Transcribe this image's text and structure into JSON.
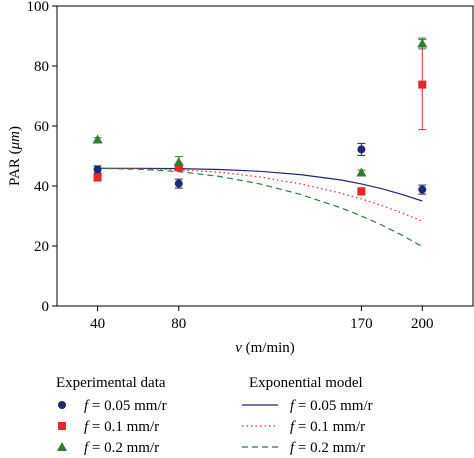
{
  "chart_data": {
    "type": "scatter",
    "ylabel_prefix": "PAR (",
    "ylabel_unit": "μm",
    "ylabel_suffix": ")",
    "xlabel_var": "v",
    "xlabel_unit": " (m/min)",
    "xlim": [
      20,
      225
    ],
    "ylim": [
      0,
      100
    ],
    "xticks": [
      40,
      80,
      170,
      200
    ],
    "yticks": [
      0,
      20,
      40,
      60,
      80,
      100
    ],
    "grid": false,
    "legend_position": "bottom",
    "experimental_title": "Experimental data",
    "model_title": "Exponential model",
    "experimental": [
      {
        "label": "= 0.05 mm/r",
        "marker": "circle",
        "color": "#1f2a6e",
        "points": [
          {
            "x": 40,
            "y": 45.5,
            "err": 1.2
          },
          {
            "x": 80,
            "y": 40.8,
            "err": 1.5
          },
          {
            "x": 170,
            "y": 52.2,
            "err": 2.0
          },
          {
            "x": 200,
            "y": 38.8,
            "err": 1.5
          }
        ]
      },
      {
        "label": "= 0.1 mm/r",
        "marker": "square",
        "color": "#e8262a",
        "points": [
          {
            "x": 40,
            "y": 42.8,
            "err": 0.8
          },
          {
            "x": 80,
            "y": 46.2,
            "err": 0.8
          },
          {
            "x": 170,
            "y": 38.2,
            "err": 1.2
          },
          {
            "x": 200,
            "y": 73.8,
            "err": 15.0
          }
        ]
      },
      {
        "label": "= 0.2 mm/r",
        "marker": "triangle",
        "color": "#2e7d32",
        "points": [
          {
            "x": 40,
            "y": 55.5,
            "err": 0.6
          },
          {
            "x": 80,
            "y": 48.0,
            "err": 1.8
          },
          {
            "x": 170,
            "y": 44.5,
            "err": 0.8
          },
          {
            "x": 200,
            "y": 87.5,
            "err": 1.8
          }
        ]
      }
    ],
    "model": [
      {
        "label": "= 0.05 mm/r",
        "style": "solid",
        "color": "#1f2a6e",
        "x": [
          40,
          60,
          80,
          100,
          120,
          140,
          160,
          170,
          180,
          190,
          200
        ],
        "y": [
          45.9,
          45.9,
          45.8,
          45.5,
          44.9,
          43.8,
          42.0,
          40.7,
          39.1,
          37.2,
          35.0
        ]
      },
      {
        "label": "= 0.1 mm/r",
        "style": "dotted",
        "color": "#e8262a",
        "x": [
          40,
          60,
          80,
          100,
          120,
          140,
          160,
          170,
          180,
          190,
          200
        ],
        "y": [
          45.9,
          45.8,
          45.4,
          44.6,
          43.0,
          40.7,
          37.6,
          35.7,
          33.5,
          31.0,
          28.3
        ]
      },
      {
        "label": "= 0.2 mm/r",
        "style": "dashed",
        "color": "#2e7d32",
        "x": [
          40,
          60,
          80,
          100,
          120,
          140,
          160,
          170,
          180,
          190,
          200
        ],
        "y": [
          45.9,
          45.6,
          44.8,
          43.2,
          40.7,
          37.2,
          32.7,
          30.0,
          27.0,
          23.6,
          19.8
        ]
      }
    ],
    "legend_var": "f"
  }
}
